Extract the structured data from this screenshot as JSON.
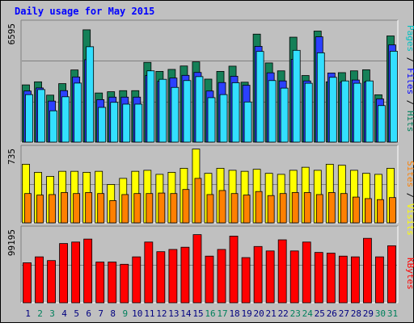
{
  "title": "Daily usage for May 2015",
  "colors": {
    "background": "#c0c0c0",
    "title": "#0000ff",
    "pages": "#00c0c0",
    "pages_bar": "#33dfff",
    "files": "#0000ff",
    "files_bar": "#2b40ff",
    "hits": "#00805c",
    "hits_bar": "#158058",
    "visits": "#ffff00",
    "sites": "#ff8000",
    "kbytes": "#ff0000",
    "weekday_label": "#000080",
    "weekend_label": "#00805c"
  },
  "chart_data": [
    {
      "type": "bar",
      "panel": "top",
      "ymax_label": "6595",
      "ylim": [
        0,
        6595
      ],
      "legend_words": [
        "Pages",
        "Files",
        "Hits"
      ],
      "legend_separator": " / ",
      "categories": [
        "1",
        "2",
        "3",
        "4",
        "5",
        "6",
        "7",
        "8",
        "9",
        "10",
        "11",
        "12",
        "13",
        "14",
        "15",
        "16",
        "17",
        "18",
        "19",
        "20",
        "21",
        "22",
        "23",
        "24",
        "25",
        "26",
        "27",
        "28",
        "29",
        "30",
        "31"
      ],
      "series": [
        {
          "name": "Hits",
          "values": [
            3180,
            3350,
            2610,
            3250,
            4010,
            6240,
            2730,
            2800,
            2860,
            2860,
            4430,
            3930,
            4040,
            4230,
            4460,
            3500,
            3930,
            4220,
            3330,
            6000,
            4400,
            3960,
            5830,
            3700,
            6170,
            3350,
            3860,
            3960,
            4020,
            2630,
            5900
          ]
        },
        {
          "name": "Files",
          "values": [
            2840,
            3010,
            2280,
            2860,
            3620,
            4580,
            2360,
            2500,
            2500,
            2500,
            3700,
            3380,
            3560,
            3710,
            3870,
            2840,
            3310,
            3660,
            3160,
            5320,
            3850,
            3400,
            4600,
            3400,
            5850,
            3840,
            3330,
            3450,
            3340,
            2400,
            5400
          ]
        },
        {
          "name": "Pages",
          "values": [
            2640,
            2920,
            1740,
            2520,
            3280,
            5300,
            1930,
            2210,
            2110,
            2110,
            3960,
            3490,
            3040,
            3420,
            3640,
            2470,
            2640,
            3300,
            2230,
            5040,
            3420,
            3000,
            5100,
            3270,
            4960,
            3600,
            3400,
            3270,
            3400,
            2030,
            5050
          ]
        }
      ],
      "weekend_days": [
        "2",
        "3",
        "9",
        "16",
        "17",
        "23",
        "24",
        "30",
        "31"
      ]
    },
    {
      "type": "bar",
      "panel": "middle",
      "ymax_label": "735",
      "ylim": [
        0,
        735
      ],
      "legend_words": [
        "Sites",
        "Visits"
      ],
      "legend_separator": " / ",
      "categories": [
        "1",
        "2",
        "3",
        "4",
        "5",
        "6",
        "7",
        "8",
        "9",
        "10",
        "11",
        "12",
        "13",
        "14",
        "15",
        "16",
        "17",
        "18",
        "19",
        "20",
        "21",
        "22",
        "23",
        "24",
        "25",
        "26",
        "27",
        "28",
        "29",
        "30",
        "31"
      ],
      "series": [
        {
          "name": "Visits",
          "values": [
            580,
            500,
            460,
            510,
            510,
            500,
            510,
            380,
            440,
            510,
            520,
            480,
            500,
            540,
            730,
            490,
            540,
            520,
            510,
            530,
            490,
            480,
            520,
            550,
            520,
            580,
            570,
            520,
            490,
            480,
            540
          ]
        },
        {
          "name": "Sites",
          "values": [
            290,
            275,
            280,
            300,
            290,
            300,
            290,
            220,
            280,
            290,
            290,
            295,
            290,
            330,
            440,
            280,
            320,
            290,
            275,
            310,
            270,
            290,
            300,
            300,
            280,
            300,
            290,
            255,
            240,
            230,
            250
          ]
        }
      ]
    },
    {
      "type": "bar",
      "panel": "bottom",
      "ymax_label": "99195",
      "ylim": [
        0,
        99195
      ],
      "legend_words": [
        "KBytes"
      ],
      "categories": [
        "1",
        "2",
        "3",
        "4",
        "5",
        "6",
        "7",
        "8",
        "9",
        "10",
        "11",
        "12",
        "13",
        "14",
        "15",
        "16",
        "17",
        "18",
        "19",
        "20",
        "21",
        "22",
        "23",
        "24",
        "25",
        "26",
        "27",
        "28",
        "29",
        "30",
        "31"
      ],
      "series": [
        {
          "name": "KBytes",
          "values": [
            54000,
            62000,
            57000,
            80000,
            82000,
            86000,
            55000,
            55000,
            52000,
            62000,
            82000,
            69000,
            72000,
            75000,
            92000,
            63000,
            72000,
            90000,
            61000,
            76000,
            70000,
            85000,
            70000,
            82000,
            68000,
            67000,
            63000,
            62000,
            87000,
            62000,
            77000
          ]
        }
      ]
    }
  ]
}
